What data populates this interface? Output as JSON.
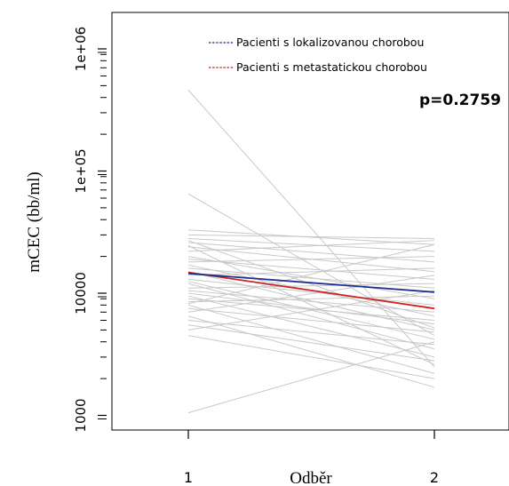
{
  "chart_data": {
    "type": "line",
    "title": "",
    "xlabel": "Odběr",
    "ylabel": "mCEC (bb/ml)",
    "x_categories": [
      "1",
      "2"
    ],
    "y_scale": "log",
    "ylim": [
      700,
      1400000
    ],
    "y_ticks": [
      {
        "value": 1000,
        "label": "1000"
      },
      {
        "value": 10000,
        "label": "10000"
      },
      {
        "value": 100000,
        "label": "1e+05"
      },
      {
        "value": 1000000,
        "label": "1e+06"
      }
    ],
    "annotation": "p=0.2759",
    "grid": false,
    "legend_position": "top-right",
    "series": [
      {
        "name": "Pacienti s lokalizovanou chorobou",
        "color": "#1f2f8f",
        "values": [
          14500,
          10200
        ]
      },
      {
        "name": "Pacienti s metastatickou chorobou",
        "color": "#cc2222",
        "values": [
          14800,
          7500
        ]
      }
    ],
    "individual_color": "#c8c8c8",
    "individual_lines": [
      [
        460000,
        2500
      ],
      [
        1050,
        4000
      ],
      [
        65000,
        4500
      ],
      [
        33000,
        25000
      ],
      [
        30000,
        28000
      ],
      [
        28000,
        22000
      ],
      [
        26000,
        18000
      ],
      [
        24000,
        15000
      ],
      [
        22000,
        27000
      ],
      [
        20000,
        9000
      ],
      [
        19000,
        13000
      ],
      [
        18000,
        20000
      ],
      [
        17000,
        6500
      ],
      [
        16000,
        11000
      ],
      [
        15000,
        5000
      ],
      [
        14000,
        16000
      ],
      [
        13000,
        8000
      ],
      [
        12500,
        4200
      ],
      [
        12000,
        3500
      ],
      [
        11000,
        12000
      ],
      [
        10500,
        7000
      ],
      [
        10000,
        5600
      ],
      [
        9500,
        3000
      ],
      [
        9000,
        6000
      ],
      [
        8500,
        9500
      ],
      [
        8000,
        2200
      ],
      [
        7500,
        4800
      ],
      [
        7000,
        14000
      ],
      [
        6500,
        1700
      ],
      [
        6000,
        3800
      ],
      [
        5500,
        2800
      ],
      [
        5000,
        10500
      ],
      [
        4500,
        2000
      ],
      [
        24500,
        2600
      ],
      [
        27000,
        5200
      ],
      [
        8200,
        25000
      ]
    ]
  }
}
